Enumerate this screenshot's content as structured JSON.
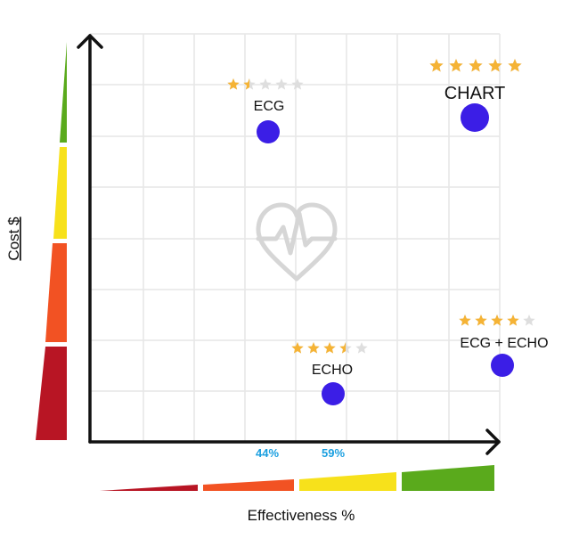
{
  "colors": {
    "green": "#5aaa1c",
    "yellow": "#f7e11b",
    "orange": "#f25223",
    "red": "#b81524",
    "point": "#3b1ee6",
    "star": "#f5b335",
    "star_empty": "#dedede",
    "percent": "#1a9fe0",
    "grid": "#e6e6e6",
    "heart": "#d6d6d6"
  },
  "axes": {
    "y_label": "Cost $",
    "x_label": "Effectiveness %"
  },
  "markers": [
    {
      "value": "44%"
    },
    {
      "value": "59%"
    }
  ],
  "items": [
    {
      "label": "ECG",
      "rating": 1.5
    },
    {
      "label": "CHART",
      "rating": 5
    },
    {
      "label": "ECHO",
      "rating": 3.5
    },
    {
      "label": "ECG + ECHO",
      "rating": 4
    }
  ],
  "background_icon": "heart-pulse-icon"
}
